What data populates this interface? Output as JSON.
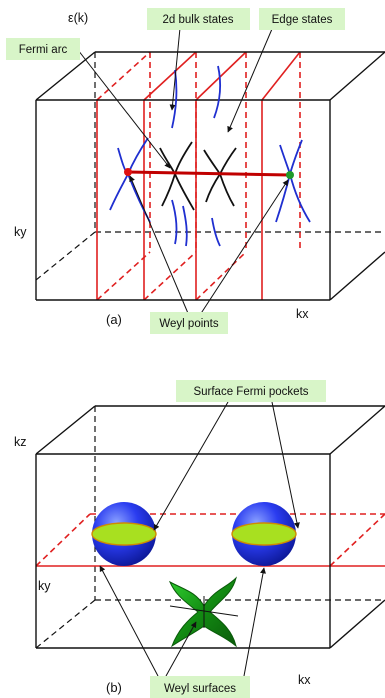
{
  "panel_a": {
    "energy_axis": "ε(k)",
    "ky_label": "ky",
    "kx_label": "kx",
    "panel_label": "(a)",
    "callouts": {
      "bulk_states": "2d bulk states",
      "edge_states": "Edge states",
      "fermi_arc": "Fermi arc",
      "weyl_points": "Weyl points"
    }
  },
  "panel_b": {
    "kz_label": "kz",
    "ky_label": "ky",
    "kx_label": "kx",
    "panel_label": "(b)",
    "callouts": {
      "surface_pockets": "Surface Fermi pockets",
      "weyl_surfaces": "Weyl surfaces"
    }
  },
  "colors": {
    "box_edges": "#111111",
    "slices": "#e02020",
    "bulk_bands": "#1f2fd0",
    "edge_bands": "#111111",
    "fermi_arc": "#c00000",
    "weyl_left": "#e01010",
    "weyl_right": "#1f9a2a",
    "label_bg": "#d8f5c8",
    "sphere": "#2030e0",
    "pocket": "#a8e020",
    "surface": "#1a9a1a"
  }
}
